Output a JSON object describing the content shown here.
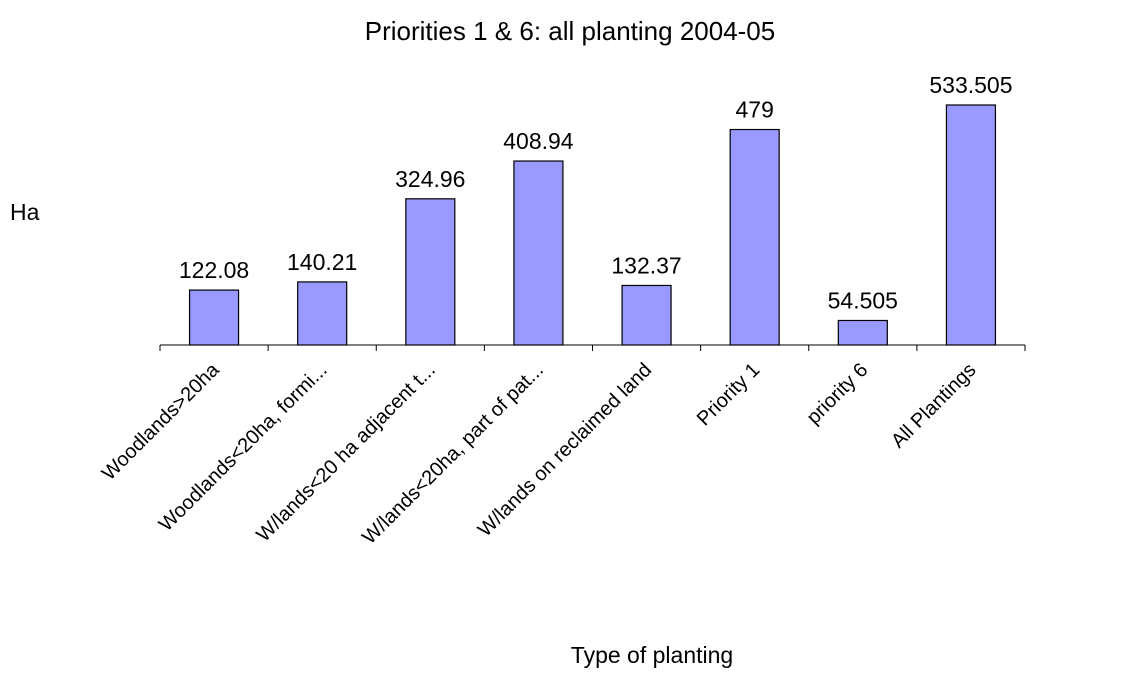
{
  "chart_data": {
    "type": "bar",
    "title": "Priorities 1 & 6: all planting 2004-05",
    "xlabel": "Type of planting",
    "ylabel": "Ha",
    "categories": [
      "Woodlands>20ha",
      "Woodlands<20ha, formi...",
      "W/lands<20 ha adjacent t...",
      "W/lands<20ha, part of pat...",
      "W/lands on reclaimed land",
      "Priority 1",
      "priority 6",
      "All Plantings"
    ],
    "values": [
      122.08,
      140.21,
      324.96,
      408.94,
      132.37,
      479,
      54.505,
      533.505
    ],
    "data_labels": [
      "122.08",
      "140.21",
      "324.96",
      "408.94",
      "132.37",
      "479",
      "54.505",
      "533.505"
    ],
    "ylim": [
      0,
      533.505
    ],
    "grid": false,
    "legend": "none",
    "bar_color": "#9999ff"
  }
}
